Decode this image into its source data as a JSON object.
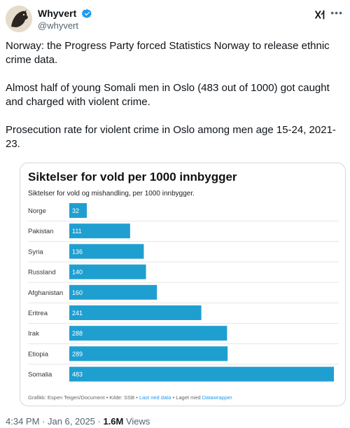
{
  "user": {
    "display_name": "Whyvert",
    "handle": "@whyvert"
  },
  "tweet": {
    "paragraphs": [
      "Norway: the Progress Party forced Statistics Norway to release ethnic crime data.",
      "Almost half of young Somali men in Oslo (483 out of 1000) got caught and charged with violent crime.",
      "Prosecution rate for violent crime in Oslo among men age 15-24, 2021-23."
    ]
  },
  "chart_card": {
    "footer_prefix": "Grafikk: Espen Teigen/Document • Kilde: SSB • ",
    "footer_link1": "Last ned data",
    "footer_middle": " • Laget med ",
    "footer_link2": "Datawrapper"
  },
  "chart_data": {
    "type": "bar",
    "title": "Siktelser for vold per 1000 innbygger",
    "subtitle": "Siktelser for vold og mishandling, per 1000 innbygger.",
    "categories": [
      "Norge",
      "Pakistan",
      "Syria",
      "Russland",
      "Afghanistan",
      "Eritrea",
      "Irak",
      "Etiopia",
      "Somalia"
    ],
    "values": [
      32,
      111,
      136,
      140,
      160,
      241,
      288,
      289,
      483
    ],
    "bar_color": "#1f9fd0",
    "xlim": [
      0,
      483
    ]
  },
  "meta": {
    "time_date": "4:34 PM · Jan 6, 2025 · ",
    "views_count": "1.6M",
    "views_label": " Views"
  }
}
